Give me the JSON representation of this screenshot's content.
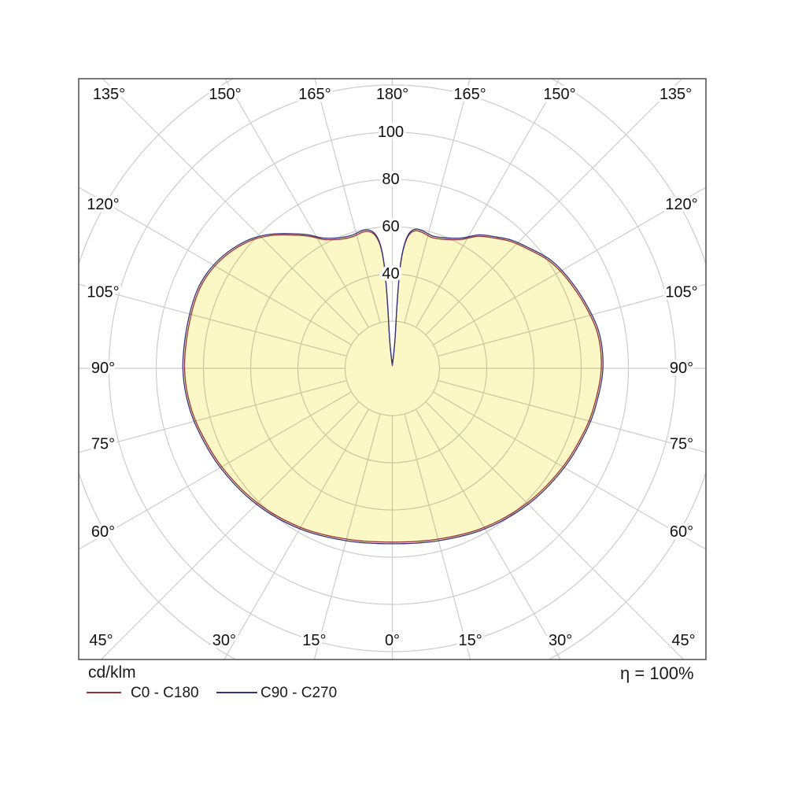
{
  "footer": {
    "units_label": "cd/klm",
    "efficiency_label": "η = 100%"
  },
  "legend": [
    {
      "label": "C0 - C180",
      "color": "#993333"
    },
    {
      "label": "C90 - C270",
      "color": "#333380"
    }
  ],
  "chart_data": {
    "type": "polar",
    "kind": "luminous-intensity-distribution",
    "units": "cd/klm",
    "efficiency": "η = 100%",
    "angle_ticks_deg": [
      0,
      15,
      30,
      45,
      60,
      75,
      90,
      105,
      120,
      135,
      150,
      165,
      180
    ],
    "angle_tick_suffix": "°",
    "radial_ticks": [
      40,
      60,
      80,
      100
    ],
    "radial_grid_step": 20,
    "radial_grid_max": 140,
    "spoke_step_deg": 15,
    "grid_color": "#cccccc",
    "frame_color": "#4d4d4d",
    "fill_color": "#FBF8C5",
    "text_color": "#111111",
    "series": [
      {
        "name": "C0 - C180",
        "color": "#993333"
      },
      {
        "name": "C90 - C270",
        "color": "#333380"
      }
    ],
    "profile_deg_cd": [
      [
        0,
        74.3
      ],
      [
        15,
        75.6
      ],
      [
        30,
        78.5
      ],
      [
        45,
        81.4
      ],
      [
        60,
        84.1
      ],
      [
        73,
        86.5
      ],
      [
        82,
        88.0
      ],
      [
        90,
        89.2
      ],
      [
        98,
        89.1
      ],
      [
        105,
        87.5
      ],
      [
        115,
        84.5
      ],
      [
        124,
        81.4
      ],
      [
        132,
        76.8
      ],
      [
        137,
        74.2
      ],
      [
        142,
        70.7
      ],
      [
        147,
        67.4
      ],
      [
        152,
        62.5
      ],
      [
        158,
        59.6
      ],
      [
        163,
        58.6
      ],
      [
        167.5,
        59.6
      ],
      [
        170.5,
        59.8
      ],
      [
        172.8,
        57.8
      ],
      [
        174.4,
        52.9
      ],
      [
        175.5,
        44.5
      ],
      [
        175.8,
        34.4
      ],
      [
        175.7,
        24.4
      ],
      [
        174.7,
        12.7
      ],
      [
        176,
        3
      ],
      [
        -176,
        3
      ],
      [
        -174.7,
        12.7
      ],
      [
        -175.7,
        24.4
      ],
      [
        -175.8,
        34.4
      ],
      [
        -175.5,
        44.5
      ],
      [
        -174.4,
        52.9
      ],
      [
        -172.6,
        57.5
      ],
      [
        -170.2,
        59.5
      ],
      [
        -167.6,
        59.7
      ],
      [
        -163,
        58.9
      ],
      [
        -158.5,
        59.5
      ],
      [
        -152,
        62.5
      ],
      [
        -147,
        67.6
      ],
      [
        -139,
        75.5
      ],
      [
        -133.4,
        80.5
      ],
      [
        -128,
        83.9
      ],
      [
        -122.6,
        86.5
      ],
      [
        -117,
        88.3
      ],
      [
        -112,
        89.0
      ],
      [
        -105.9,
        88.9
      ],
      [
        -98,
        88.7
      ],
      [
        -90,
        88.7
      ],
      [
        -82,
        88.0
      ],
      [
        -73,
        86.5
      ],
      [
        -60,
        84.1
      ],
      [
        -45,
        81.4
      ],
      [
        -30,
        78.5
      ],
      [
        -15,
        75.6
      ]
    ]
  }
}
